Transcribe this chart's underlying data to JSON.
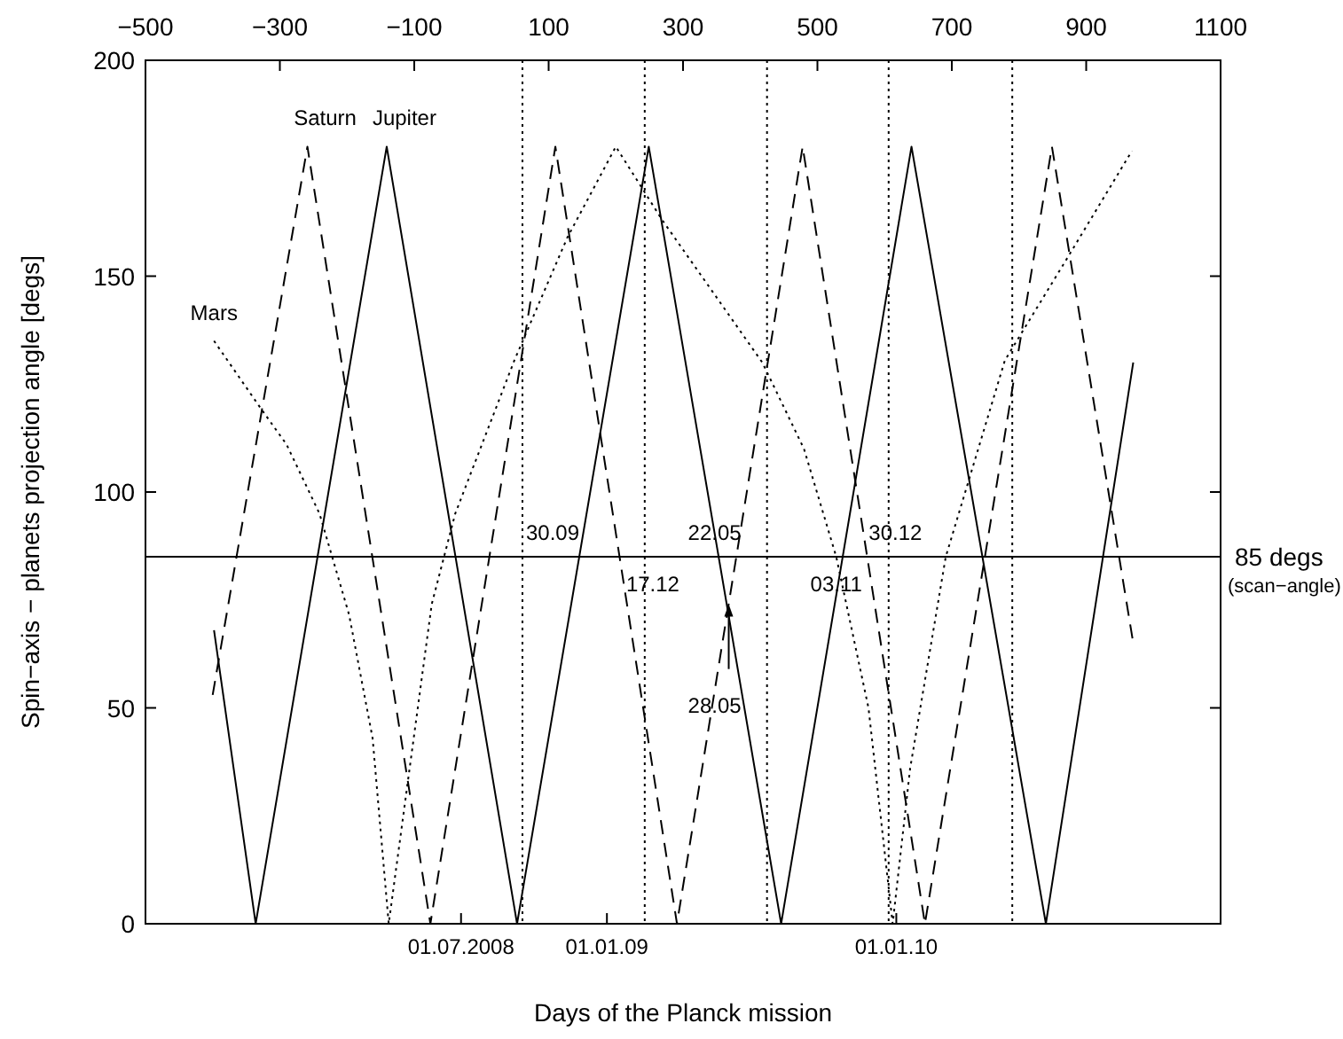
{
  "chart_data": {
    "type": "line",
    "xlabel": "Days of the Planck mission",
    "ylabel": "Spin−axis − planets projection angle [degs]",
    "xlim": [
      -500,
      1100
    ],
    "xticks": [
      {
        "value": -500,
        "label": "−500"
      },
      {
        "value": -300,
        "label": "−300"
      },
      {
        "value": -100,
        "label": "−100"
      },
      100,
      300,
      500,
      700,
      900,
      1100
    ],
    "x2lim": [
      "2007-05-30",
      "2011-02-14"
    ],
    "x2ticks": [
      {
        "value": "2008-07-01",
        "label": "01.07.2008"
      },
      {
        "value": "2009-01-01",
        "label": "01.01.09"
      },
      {
        "value": "2010-01-01",
        "label": "01.01.10"
      }
    ],
    "ylim": [
      0,
      200
    ],
    "yticks": [
      0,
      50,
      100,
      150,
      200
    ],
    "grid": false,
    "marker": "none",
    "series": [
      {
        "name": "Jupiter",
        "color": "#000000",
        "line_style": "solid",
        "x": [
          -398,
          -336,
          -141,
          53,
          249,
          446,
          640,
          840,
          970
        ],
        "values": [
          68,
          0,
          180,
          0,
          180,
          0,
          180,
          0,
          130
        ]
      },
      {
        "name": "Saturn",
        "color": "#000000",
        "line_style": "dashed",
        "x": [
          -400,
          -259,
          -76,
          110,
          291,
          478,
          660,
          849,
          970
        ],
        "values": [
          53,
          180,
          0,
          180,
          0,
          180,
          0,
          180,
          65
        ]
      },
      {
        "name": "Mars",
        "color": "#000000",
        "line_style": "dotted",
        "x": [
          -398,
          -329,
          -290,
          -241,
          -197,
          -162,
          -138,
          -74,
          -39,
          49,
          128,
          200,
          269,
          418,
          480,
          528,
          576,
          612,
          638,
          691,
          779,
          875,
          968
        ],
        "values": [
          135,
          119.5,
          111,
          95,
          71.6,
          43,
          0,
          74,
          95,
          130.5,
          159,
          180,
          163,
          130,
          110,
          85,
          50,
          0,
          36,
          85,
          130.5,
          155,
          179
        ]
      }
    ],
    "ref_lines": [
      {
        "axis": "y",
        "value": 85,
        "label": "85 degs",
        "color": "#000000",
        "line_style": "solid"
      },
      {
        "axis": "x",
        "value": 61,
        "color": "#000000",
        "line_style": "dotted"
      },
      {
        "axis": "x",
        "value": 243,
        "color": "#000000",
        "line_style": "dotted"
      },
      {
        "axis": "x",
        "value": 425,
        "color": "#000000",
        "line_style": "dotted"
      },
      {
        "axis": "x",
        "value": 606,
        "color": "#000000",
        "line_style": "dotted"
      },
      {
        "axis": "x",
        "value": 790,
        "color": "#000000",
        "line_style": "dotted"
      }
    ],
    "annotations": [
      "(scan−angle)",
      {
        "text": "30.09",
        "x": 61,
        "y": 91
      },
      {
        "text": "17.12",
        "x": 255,
        "y": 79
      },
      {
        "text": "22.05",
        "x": 347,
        "y": 91
      },
      {
        "text": "28.05",
        "x": 347,
        "y": 51
      },
      {
        "text": "03.11",
        "x": 528,
        "y": 79
      },
      {
        "text": "30.12",
        "x": 616,
        "y": 91
      }
    ]
  }
}
